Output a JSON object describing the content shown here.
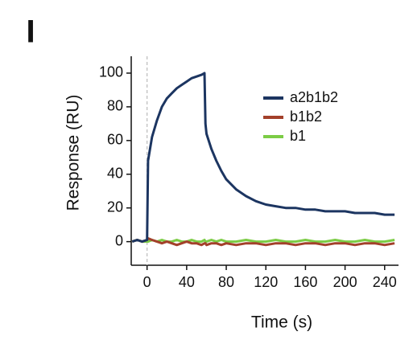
{
  "chart_data": {
    "type": "line",
    "panel_label": "I",
    "xlabel": "Time (s)",
    "ylabel": "Response (RU)",
    "x": [
      -15,
      -10,
      -5,
      0,
      1,
      5,
      10,
      15,
      20,
      25,
      30,
      35,
      40,
      45,
      50,
      55,
      58,
      59,
      60,
      65,
      70,
      75,
      80,
      90,
      100,
      110,
      120,
      130,
      140,
      150,
      160,
      170,
      180,
      190,
      200,
      210,
      220,
      230,
      240,
      250
    ],
    "series": [
      {
        "name": "b1",
        "color": "#7ccc45",
        "values": [
          0,
          1,
          0,
          0,
          0,
          1,
          0,
          1,
          0,
          0,
          1,
          0,
          0,
          1,
          0,
          0,
          1,
          0,
          0,
          1,
          0,
          1,
          0,
          0,
          1,
          0,
          0,
          1,
          0,
          0,
          1,
          0,
          0,
          1,
          0,
          0,
          1,
          0,
          0,
          1
        ]
      },
      {
        "name": "b1b2",
        "color": "#a3402b",
        "values": [
          0,
          1,
          0,
          1,
          2,
          1,
          0,
          -1,
          0,
          -1,
          -2,
          -1,
          0,
          -1,
          -1,
          -2,
          -1,
          -1,
          -2,
          -1,
          -1,
          -2,
          -1,
          -2,
          -1,
          -1,
          -2,
          -1,
          -1,
          -2,
          -1,
          -1,
          -2,
          -1,
          -1,
          -2,
          -1,
          -1,
          -2,
          -1
        ]
      },
      {
        "name": "a2b1b2",
        "color": "#1c3561",
        "values": [
          0,
          1,
          0,
          1,
          48,
          62,
          72,
          80,
          85,
          88,
          91,
          93,
          95,
          97,
          98,
          99,
          100,
          70,
          64,
          55,
          48,
          42,
          37,
          31,
          27,
          24,
          22,
          21,
          20,
          20,
          19,
          19,
          18,
          18,
          18,
          17,
          17,
          17,
          16,
          16
        ]
      }
    ],
    "legend_order": [
      2,
      1,
      0
    ],
    "vline": 0,
    "xlim": [
      -16,
      254
    ],
    "xticks": [
      0,
      40,
      80,
      120,
      160,
      200,
      240
    ],
    "ylim": [
      -14,
      110
    ],
    "yticks": [
      0,
      20,
      40,
      60,
      80,
      100
    ]
  }
}
